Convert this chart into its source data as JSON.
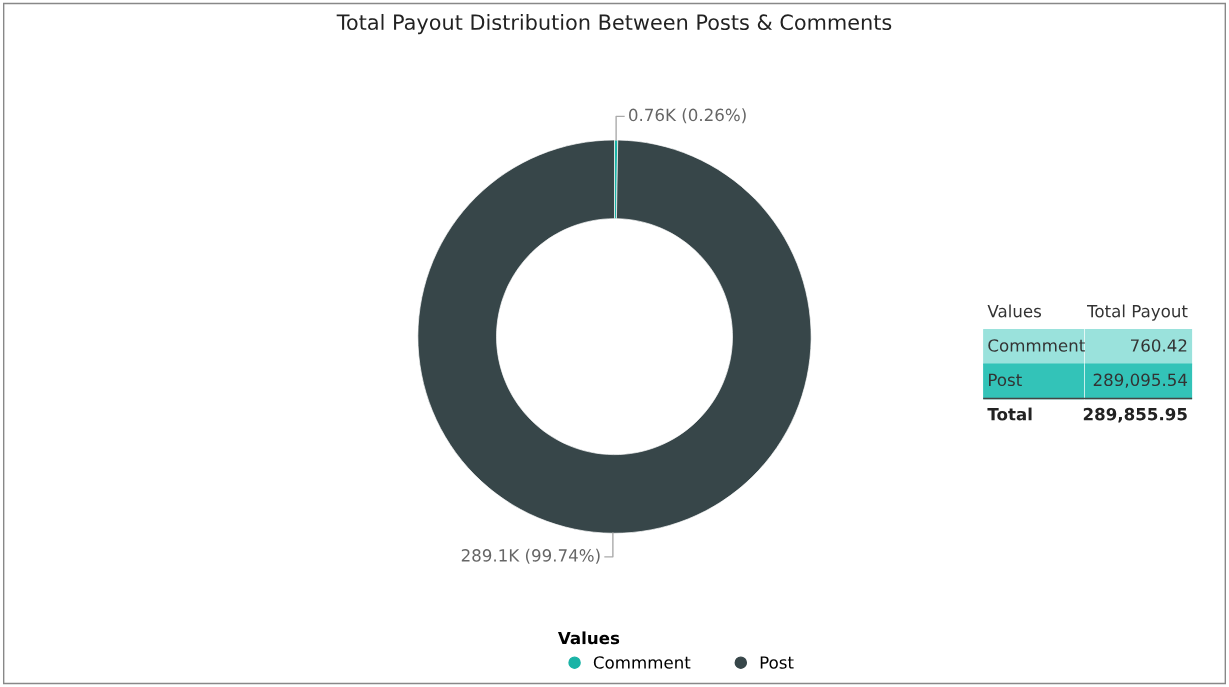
{
  "chart_data": [
    {
      "type": "donut",
      "title": "Total Payout Distribution Between Posts & Comments",
      "categories": [
        "Commment",
        "Post"
      ],
      "values": [
        760.42,
        289095.54
      ],
      "colors": [
        "#1ab3a6",
        "#374649"
      ],
      "value_labels": [
        "0.76K (0.26%)",
        "289.1K (99.74%)"
      ],
      "legend": "bottom",
      "legend_title": "Values",
      "marker": "circle"
    },
    {
      "type": "other",
      "categories": [
        "Commment",
        "Post"
      ],
      "colors": [
        "#9ae2dc",
        "#33c3b8"
      ],
      "value_labels": [
        "760.42",
        "289,095.54"
      ],
      "annotations": [
        "Values",
        "Total Payout",
        "Total",
        "289,855.95"
      ]
    }
  ]
}
